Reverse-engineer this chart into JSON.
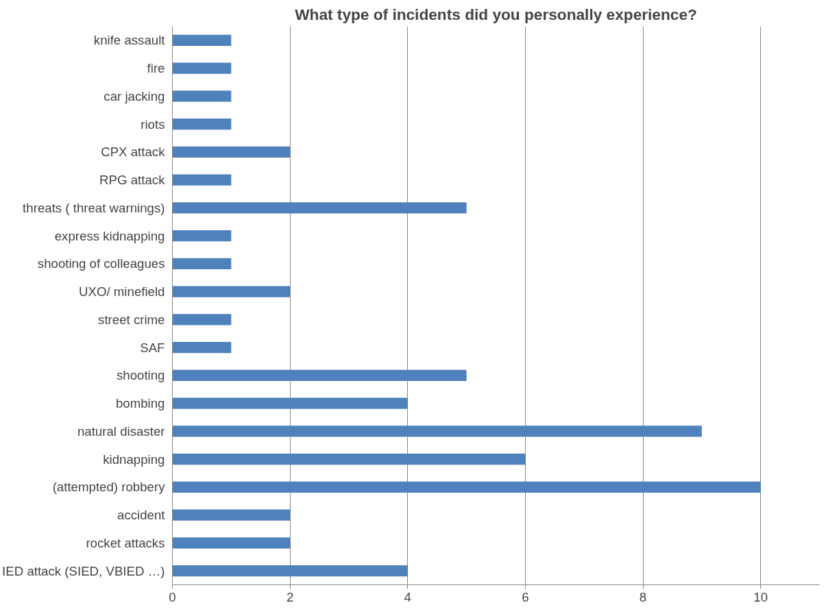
{
  "chart_data": {
    "type": "bar",
    "orientation": "horizontal",
    "title": "What type of incidents did you personally experience?",
    "categories": [
      "knife assault",
      "fire",
      "car jacking",
      "riots",
      "CPX attack",
      "RPG attack",
      "threats ( threat warnings)",
      "express kidnapping",
      "shooting of colleagues",
      "UXO/ minefield",
      "street crime",
      "SAF",
      "shooting",
      "bombing",
      "natural disaster",
      "kidnapping",
      "(attempted) robbery",
      "accident",
      "rocket attacks",
      "IED attack (SIED, VBIED …)"
    ],
    "values": [
      1,
      1,
      1,
      1,
      2,
      1,
      5,
      1,
      1,
      2,
      1,
      1,
      5,
      4,
      9,
      6,
      10,
      2,
      2,
      4
    ],
    "color": "#4f81bd",
    "xlim": [
      0,
      11
    ],
    "xticks": [
      0,
      2,
      4,
      6,
      8,
      10
    ],
    "grid": "x"
  }
}
